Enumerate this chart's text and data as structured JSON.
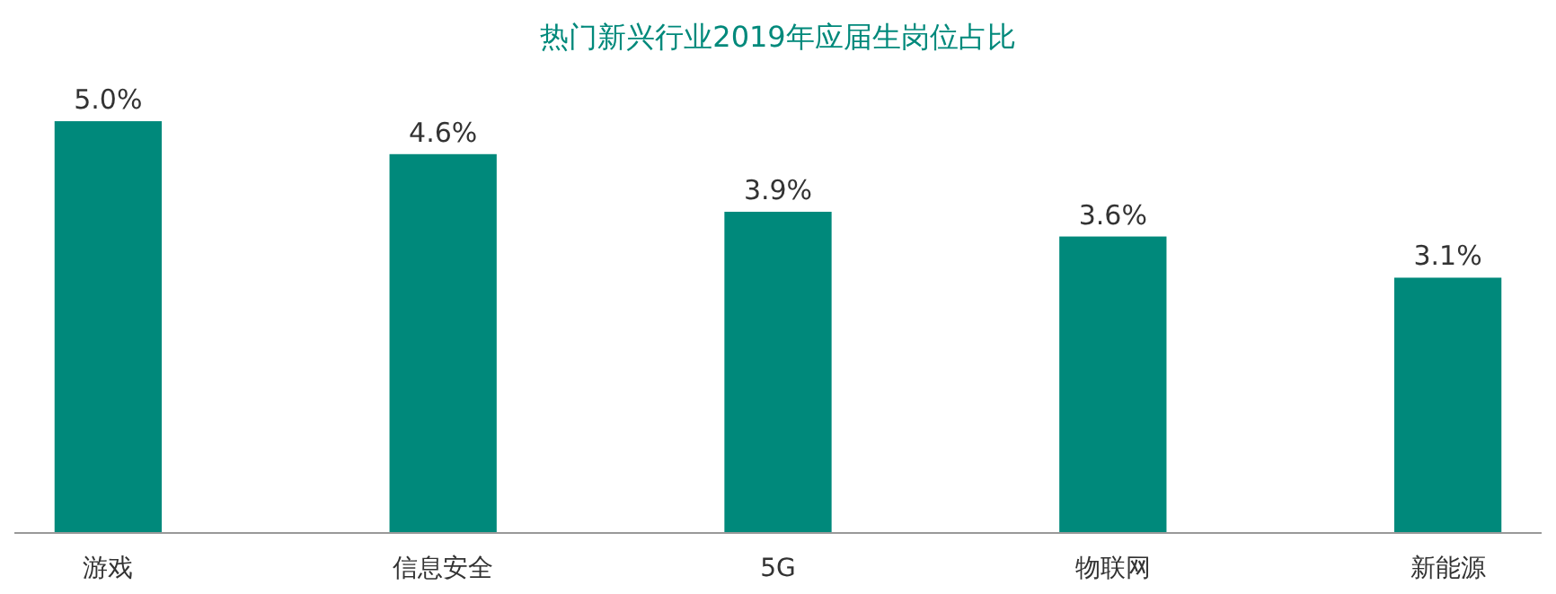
{
  "chart_data": {
    "type": "bar",
    "title": "热门新兴行业2019年应届生岗位占比",
    "categories": [
      "游戏",
      "信息安全",
      "5G",
      "物联网",
      "新能源"
    ],
    "values": [
      5.0,
      4.6,
      3.9,
      3.6,
      3.1
    ],
    "value_labels": [
      "5.0%",
      "4.6%",
      "3.9%",
      "3.6%",
      "3.1%"
    ],
    "color": "#00897b"
  }
}
